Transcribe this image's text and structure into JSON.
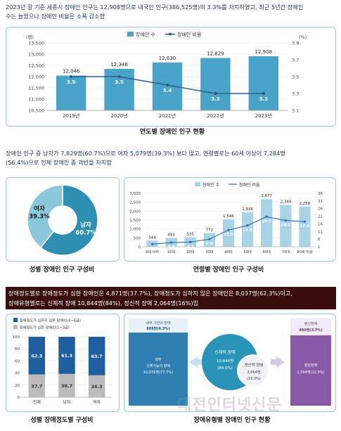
{
  "intro": {
    "line1": "2023년 말 기준 세종시 장애인 인구는 12,908명으로 내국인 인구(386,525명)의 3.3%를 차지하였고, 최근 5년간 장애인",
    "line2": "수는 늘었으나 장애인 비율은 소폭 감소함"
  },
  "chart1": {
    "caption": "연도별 장애인 인구 현황",
    "legend_count": "장애인 수",
    "legend_rate": "장애인 비율",
    "unit_left": "(명)",
    "unit_right": "(%)"
  },
  "para2": {
    "line1": "장애인 인구 중 남자가 7,829명(60.7%)으로 여자 5,079명(39.3%) 보다 많고, 연령별로는 60세 이상이 7,284명",
    "line2": "(56.4%)으로 전체 장애인 중 과반을 차지함"
  },
  "chart2": {
    "caption": "성별 장애인 인구 구성비"
  },
  "chart3": {
    "caption": "연령별 장애인 인구 구성비",
    "legend_count": "장애인 수",
    "legend_rate": "장애인 비율"
  },
  "para3": {
    "line1": "장애정도별로 장애정도가 심한 장애인은 4,871명(37.7%), 장애정도가 심하지 않은 장애인은 8,037명(62.3%)이고,",
    "line2": "장애유형별로는 신체적 장애 10,844명(84%), 정신적 장애 2,064명(16%)임"
  },
  "chart4": {
    "caption": "성별 장애정도별 구성비",
    "legend_mild": "장애정도가 심하지 않은 장애인(4~6급)",
    "legend_severe": "장애정도가 심한 장애인(1~3급)"
  },
  "chart5": {
    "caption": "장애유형별 장애인 인구 현황",
    "internal_title": "내부 기관의 장애",
    "internal_value": "809명(6.3%)",
    "external_title": "외부",
    "external_sub": "신체기능의 장애",
    "external_value": "10,035명(77.7%)",
    "physical_title": "신체적 장애",
    "physical_value": "10,844명",
    "physical_pct": "(84.0%)",
    "mental_title": "정신적 장애",
    "mental_value": "2,064명",
    "mental_pct": "(16.0%)",
    "psych_title": "정신장애",
    "psych_value": "480명(3.7%)",
    "dev_title": "발달장애",
    "dev_value": "1,584명(12.3%)"
  },
  "watermark": "대전인터넷신문",
  "chart_data": [
    {
      "type": "bar",
      "categories": [
        "2019년",
        "2020년",
        "2021년",
        "2022년",
        "2023년"
      ],
      "series": [
        {
          "name": "장애인 수",
          "type": "bar",
          "values": [
            12046,
            12346,
            12630,
            12829,
            12908
          ],
          "color": "#4aa3c8"
        },
        {
          "name": "장애인 비율",
          "type": "line",
          "values": [
            3.5,
            3.5,
            3.4,
            3.3,
            3.3
          ],
          "color": "#2e5c8a"
        }
      ],
      "ylim": [
        10500,
        13500
      ],
      "yticks": [
        10500,
        11000,
        11500,
        12000,
        12500,
        13000,
        13500
      ],
      "y2lim": [
        3.1,
        3.9
      ],
      "y2ticks": [
        3.1,
        3.3,
        3.5,
        3.7,
        3.9
      ]
    },
    {
      "type": "pie",
      "categories": [
        "남자",
        "여자"
      ],
      "values": [
        60.7,
        39.3
      ],
      "labels": [
        "60.7%",
        "39.3%"
      ],
      "colors": [
        "#2f8fb0",
        "#8cc8dc"
      ]
    },
    {
      "type": "bar",
      "categories": [
        "9세 이하",
        "10대",
        "20대",
        "30대",
        "40대",
        "50대",
        "60대",
        "70대",
        "80세 이상"
      ],
      "series": [
        {
          "name": "장애인 수",
          "type": "bar",
          "values": [
            344,
            491,
            535,
            772,
            1546,
            1936,
            2677,
            2349,
            2258
          ],
          "color": "#a8d4e6"
        },
        {
          "name": "장애인 비율",
          "type": "line",
          "values": [
            2.7,
            3.8,
            4.1,
            6.0,
            12.0,
            15.0,
            20.7,
            18.2,
            17.5
          ],
          "color": "#2e6da4"
        }
      ],
      "ylim": [
        0,
        3000
      ],
      "yticks": [
        0,
        500,
        1000,
        1500,
        2000,
        2500,
        3000
      ],
      "y2lim": [
        1,
        36
      ],
      "y2ticks": [
        1,
        6,
        11,
        16,
        21,
        26,
        31,
        36
      ]
    },
    {
      "type": "bar",
      "stacked": true,
      "categories": [
        "전체",
        "남자",
        "여자"
      ],
      "series": [
        {
          "name": "장애정도가 심한 장애인(1~3급)",
          "values": [
            37.7,
            38.7,
            36.3
          ],
          "color": "#bbbbbb"
        },
        {
          "name": "장애정도가 심하지 않은 장애인(4~6급)",
          "values": [
            62.3,
            61.3,
            63.7
          ],
          "color": "#1f5f9e"
        }
      ],
      "ylim": [
        0,
        100
      ],
      "yticks": [
        0,
        20,
        40,
        60,
        80,
        100
      ]
    }
  ]
}
